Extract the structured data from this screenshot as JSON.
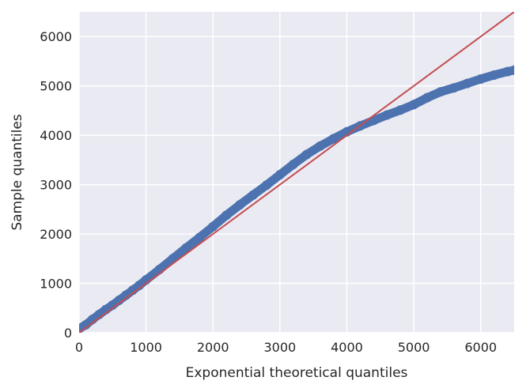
{
  "chart_data": {
    "type": "scatter",
    "title": "",
    "xlabel": "Exponential theoretical quantiles",
    "ylabel": "Sample quantiles",
    "xlim": [
      0,
      6500
    ],
    "ylim": [
      0,
      6500
    ],
    "grid": true,
    "xticks": [
      0,
      1000,
      2000,
      3000,
      4000,
      5000,
      6000
    ],
    "yticks": [
      0,
      1000,
      2000,
      3000,
      4000,
      5000,
      6000
    ],
    "xtick_labels": [
      "0",
      "1000",
      "2000",
      "3000",
      "4000",
      "5000",
      "6000"
    ],
    "ytick_labels": [
      "0",
      "1000",
      "2000",
      "3000",
      "4000",
      "5000",
      "6000"
    ],
    "series": [
      {
        "kind": "points",
        "color": "#4c72b0",
        "x": [
          0,
          100,
          200,
          300,
          400,
          500,
          600,
          700,
          800,
          900,
          1000,
          1200,
          1400,
          1600,
          1800,
          2000,
          2200,
          2400,
          2600,
          2800,
          3000,
          3200,
          3400,
          3600,
          3800,
          4000,
          4200,
          4400,
          4600,
          4800,
          5000,
          5200,
          5400,
          5600,
          5800,
          6000,
          6200,
          6400,
          6500
        ],
        "y": [
          80,
          160,
          270,
          370,
          470,
          560,
          660,
          760,
          860,
          960,
          1070,
          1280,
          1500,
          1720,
          1930,
          2150,
          2380,
          2590,
          2790,
          2990,
          3200,
          3410,
          3610,
          3780,
          3930,
          4070,
          4190,
          4300,
          4410,
          4510,
          4620,
          4760,
          4880,
          4960,
          5050,
          5140,
          5220,
          5290,
          5320
        ]
      },
      {
        "kind": "reference-line",
        "color": "#c44e52",
        "x": [
          0,
          6500
        ],
        "y": [
          0,
          6500
        ]
      }
    ]
  },
  "colors": {
    "plot_background": "#eaeaf2",
    "grid": "#ffffff",
    "points": "#4c72b0",
    "reference_line": "#c44e52",
    "text": "#262626"
  }
}
